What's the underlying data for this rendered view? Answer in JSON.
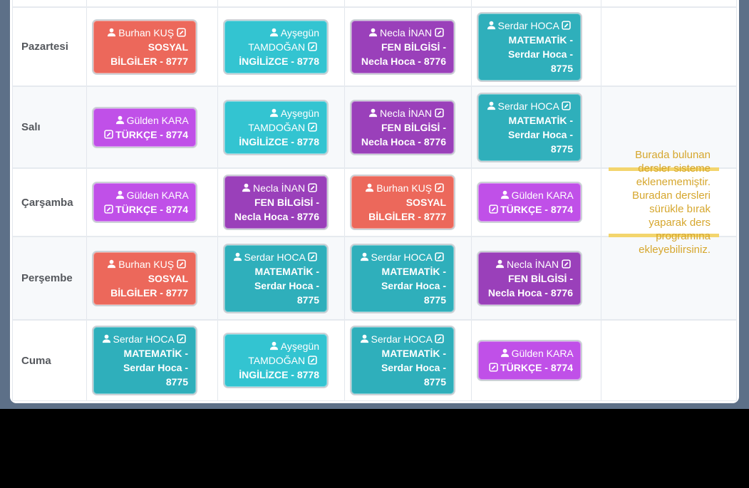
{
  "colors": {
    "cards": {
      "red": "#ec685b",
      "cyan": "#33c4d1",
      "teal": "#2fafbb",
      "purple": "#9a40ba",
      "magenta": "#c050e8"
    },
    "page_background": "#5d7088",
    "highlight_bar": "#f3d56d",
    "help_text_color": "#d6a72e"
  },
  "help_text": "Burada bulunan dersler sisteme eklenememiştir. Buradan dersleri sürükle bırak yaparak ders programına ekleyebilirsiniz.",
  "schedule": {
    "rows": [
      {
        "day": "Pazartesi",
        "cells": [
          {
            "type": "card",
            "teacher": "Burhan KUŞ",
            "subject": "SOSYAL BİLGİLER - 8777",
            "color": "red"
          },
          {
            "type": "card",
            "teacher": "Ayşegün TAMDOĞAN",
            "subject": "İNGİLİZCE - 8778",
            "color": "cyan"
          },
          {
            "type": "card",
            "teacher": "Necla İNAN",
            "subject": "FEN BİLGİSİ - Necla Hoca - 8776",
            "color": "purple"
          },
          {
            "type": "card",
            "teacher": "Serdar HOCA",
            "subject": "MATEMATİK - Serdar Hoca - 8775",
            "color": "teal"
          },
          {
            "type": "empty"
          }
        ]
      },
      {
        "day": "Salı",
        "cells": [
          {
            "type": "card",
            "teacher": "Gülden KARA",
            "subject": "TÜRKÇE - 8774",
            "color": "magenta"
          },
          {
            "type": "card",
            "teacher": "Ayşegün TAMDOĞAN",
            "subject": "İNGİLİZCE - 8778",
            "color": "cyan"
          },
          {
            "type": "card",
            "teacher": "Necla İNAN",
            "subject": "FEN BİLGİSİ - Necla Hoca - 8776",
            "color": "purple"
          },
          {
            "type": "card",
            "teacher": "Serdar HOCA",
            "subject": "MATEMATİK - Serdar Hoca - 8775",
            "color": "teal"
          },
          {
            "type": "empty"
          }
        ]
      },
      {
        "day": "Çarşamba",
        "cells": [
          {
            "type": "card",
            "teacher": "Gülden KARA",
            "subject": "TÜRKÇE - 8774",
            "color": "magenta"
          },
          {
            "type": "card",
            "teacher": "Necla İNAN",
            "subject": "FEN BİLGİSİ - Necla Hoca - 8776",
            "color": "purple"
          },
          {
            "type": "card",
            "teacher": "Burhan KUŞ",
            "subject": "SOSYAL BİLGİLER - 8777",
            "color": "red"
          },
          {
            "type": "card",
            "teacher": "Gülden KARA",
            "subject": "TÜRKÇE - 8774",
            "color": "magenta"
          },
          {
            "type": "help"
          }
        ]
      },
      {
        "day": "Perşembe",
        "cells": [
          {
            "type": "card",
            "teacher": "Burhan KUŞ",
            "subject": "SOSYAL BİLGİLER - 8777",
            "color": "red"
          },
          {
            "type": "card",
            "teacher": "Serdar HOCA",
            "subject": "MATEMATİK - Serdar Hoca - 8775",
            "color": "teal"
          },
          {
            "type": "card",
            "teacher": "Serdar HOCA",
            "subject": "MATEMATİK - Serdar Hoca - 8775",
            "color": "teal"
          },
          {
            "type": "card",
            "teacher": "Necla İNAN",
            "subject": "FEN BİLGİSİ - Necla Hoca - 8776",
            "color": "purple"
          },
          {
            "type": "empty"
          }
        ]
      },
      {
        "day": "Cuma",
        "cells": [
          {
            "type": "card",
            "teacher": "Serdar HOCA",
            "subject": "MATEMATİK - Serdar Hoca - 8775",
            "color": "teal"
          },
          {
            "type": "card",
            "teacher": "Ayşegün TAMDOĞAN",
            "subject": "İNGİLİZCE - 8778",
            "color": "cyan"
          },
          {
            "type": "card",
            "teacher": "Serdar HOCA",
            "subject": "MATEMATİK - Serdar Hoca - 8775",
            "color": "teal"
          },
          {
            "type": "card",
            "teacher": "Gülden KARA",
            "subject": "TÜRKÇE - 8774",
            "color": "magenta"
          },
          {
            "type": "empty"
          }
        ]
      }
    ]
  }
}
